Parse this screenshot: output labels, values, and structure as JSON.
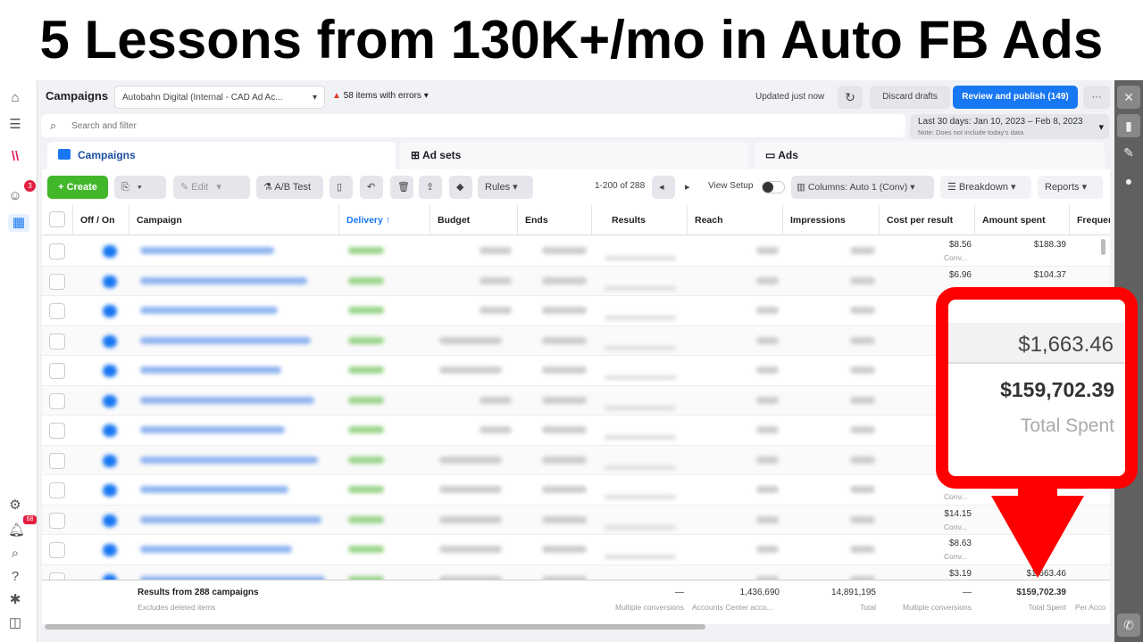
{
  "thumbnail_title": "5 Lessons from 130K+/mo in Auto FB Ads",
  "header": {
    "title": "Campaigns",
    "account": "Autobahn Digital (Internal - CAD Ad Ac...",
    "errors": "58 items with errors",
    "updated": "Updated just now",
    "discard": "Discard drafts",
    "publish": "Review and publish (149)",
    "more": "···"
  },
  "search": {
    "placeholder": "Search and filter"
  },
  "date": {
    "range": "Last 30 days: Jan 10, 2023 – Feb 8, 2023",
    "note": "Note: Does not include today's data"
  },
  "tabs": [
    "Campaigns",
    "Ad sets",
    "Ads"
  ],
  "toolbar": {
    "create": "+ Create",
    "edit": "Edit",
    "ab_test": "A/B Test",
    "rules": "Rules",
    "pagination": "1-200 of 288",
    "view_setup": "View Setup",
    "columns": "Columns: Auto 1 (Conv)",
    "breakdown": "Breakdown",
    "reports": "Reports"
  },
  "columns": [
    "Off / On",
    "Campaign",
    "Delivery ↑",
    "Budget",
    "Ends",
    "Results",
    "Reach",
    "Impressions",
    "Cost per result",
    "Amount spent",
    "Frequer"
  ],
  "rows": [
    {
      "cost": "$8.56",
      "cost_sub": "Conv...",
      "spent": "$188.39"
    },
    {
      "cost": "$6.96",
      "cost_sub": "",
      "spent": "$104.37"
    },
    {
      "cost": "",
      "cost_sub": "",
      "spent": ""
    },
    {
      "cost": "",
      "cost_sub": "",
      "spent": ""
    },
    {
      "cost": "",
      "cost_sub": "",
      "spent": ""
    },
    {
      "cost": "",
      "cost_sub": "",
      "spent": ""
    },
    {
      "cost": "",
      "cost_sub": "",
      "spent": ""
    },
    {
      "cost": "",
      "cost_sub": "",
      "spent": ""
    },
    {
      "cost": "",
      "cost_sub": "Conv...",
      "spent": ""
    },
    {
      "cost": "$14.15",
      "cost_sub": "Conv...",
      "spent": ""
    },
    {
      "cost": "$8.63",
      "cost_sub": "Conv...",
      "spent": ""
    },
    {
      "cost": "$3.19",
      "cost_sub": "",
      "spent": "$1,663.46"
    }
  ],
  "footer": {
    "title": "Results from 288 campaigns",
    "subtitle": "Excludes deleted items",
    "results": "—",
    "results_sub": "Multiple conversions",
    "reach": "1,436,690",
    "reach_sub": "Accounts Center acco...",
    "impressions": "14,891,195",
    "impressions_sub": "Total",
    "cost": "—",
    "cost_sub": "Multiple conversions",
    "spent": "$159,702.39",
    "spent_sub": "Total Spent",
    "freq_sub": "Per Acco"
  },
  "sidebar": {
    "notification_badge": "3",
    "alerts_badge": "68"
  },
  "callout": {
    "row_value": "$1,663.46",
    "total": "$159,702.39",
    "label": "Total Spent"
  },
  "colors": {
    "accent": "#1877f2",
    "create": "#42b72a",
    "callout": "#ff0000"
  }
}
